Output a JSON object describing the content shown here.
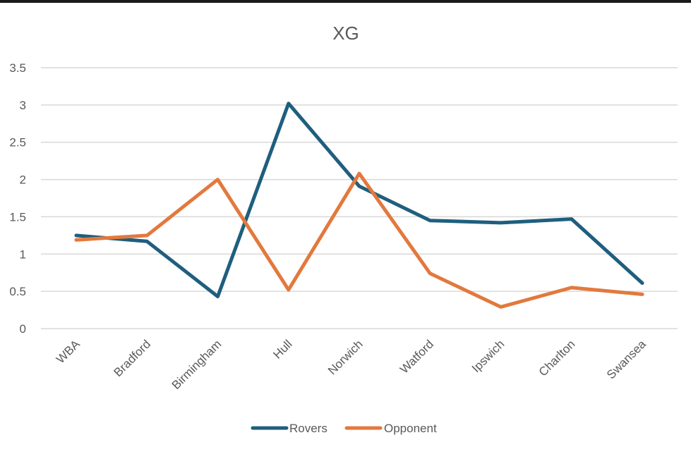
{
  "chart_data": {
    "type": "line",
    "title": "XG",
    "xlabel": "",
    "ylabel": "",
    "categories": [
      "WBA",
      "Bradford",
      "Birmingham",
      "Hull",
      "Norwich",
      "Watford",
      "Ipswich",
      "Charlton",
      "Swansea"
    ],
    "series": [
      {
        "name": "Rovers",
        "color": "#1f5e7e",
        "values": [
          1.25,
          1.17,
          0.43,
          3.02,
          1.91,
          1.45,
          1.42,
          1.47,
          0.61
        ]
      },
      {
        "name": "Opponent",
        "color": "#e2793d",
        "values": [
          1.19,
          1.25,
          2.0,
          0.52,
          2.08,
          0.74,
          0.29,
          0.55,
          0.46
        ]
      }
    ],
    "ylim": [
      0,
      3.5
    ],
    "yticks": [
      "0",
      "0.5",
      "1",
      "1.5",
      "2",
      "2.5",
      "3",
      "3.5"
    ],
    "grid": true,
    "legend": "bottom"
  }
}
